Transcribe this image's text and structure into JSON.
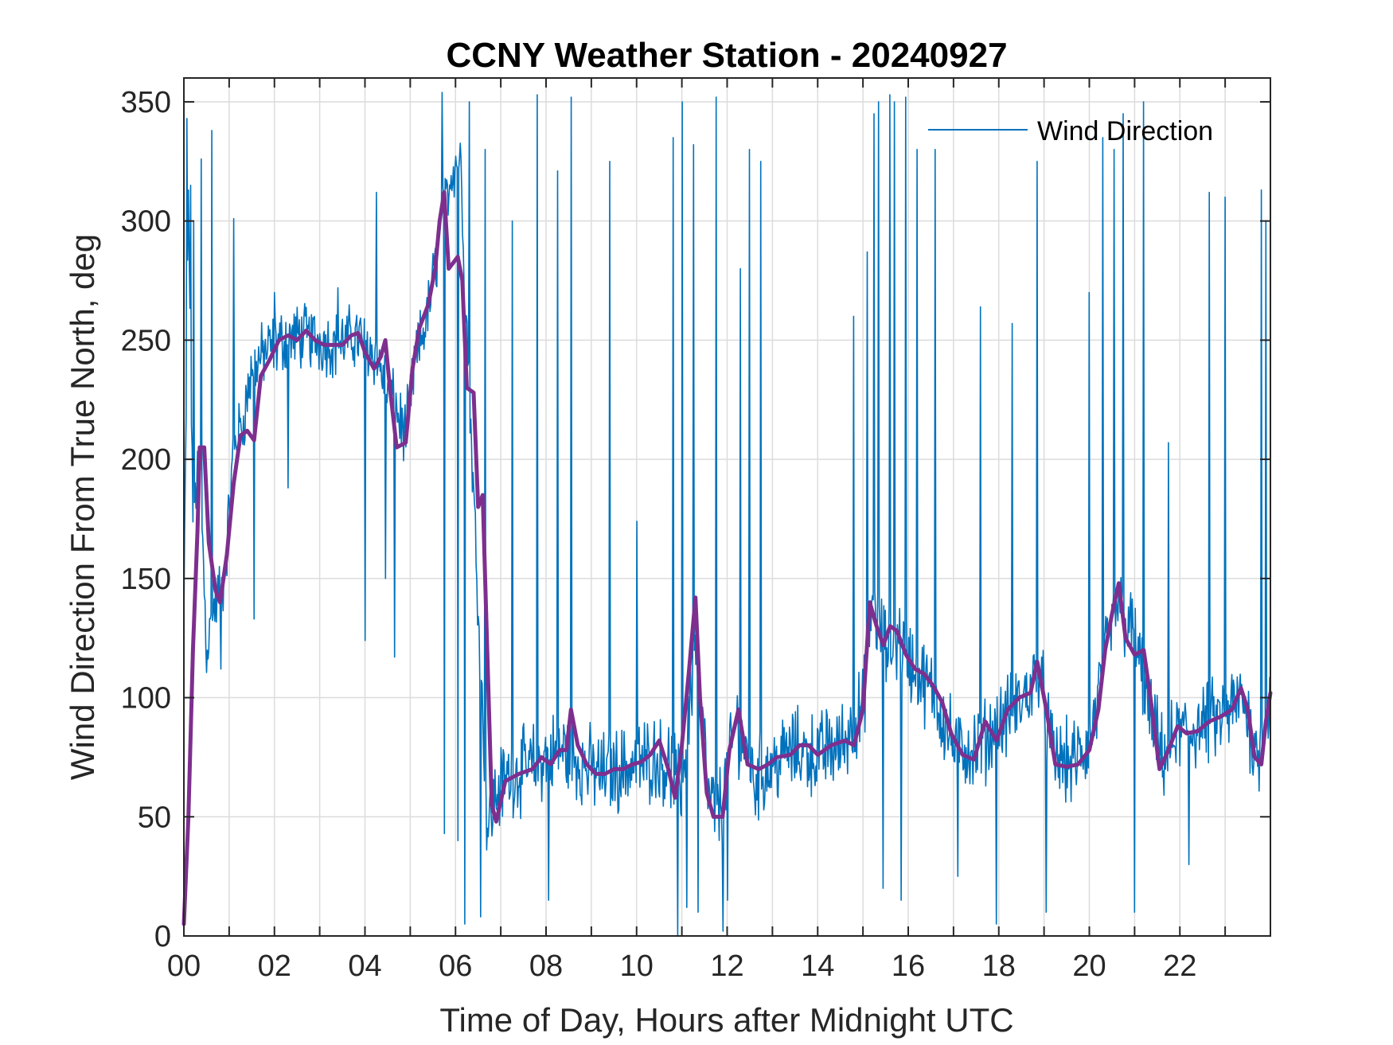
{
  "chart_data": {
    "type": "line",
    "title": "CCNY Weather Station - 20240927",
    "xlabel": "Time of Day, Hours after Midnight UTC",
    "ylabel": "Wind Direction From True North, deg",
    "xlim": [
      0,
      24
    ],
    "ylim": [
      0,
      360
    ],
    "x_ticks": [
      0,
      2,
      4,
      6,
      8,
      10,
      12,
      14,
      16,
      18,
      20,
      22
    ],
    "x_tick_labels": [
      "00",
      "02",
      "04",
      "06",
      "08",
      "10",
      "12",
      "14",
      "16",
      "18",
      "20",
      "22"
    ],
    "y_ticks": [
      0,
      50,
      100,
      150,
      200,
      250,
      300,
      350
    ],
    "y_tick_labels": [
      "0",
      "50",
      "100",
      "150",
      "200",
      "250",
      "300",
      "350"
    ],
    "grid": true,
    "legend": {
      "position": "top-right",
      "entries": [
        "Wind Direction"
      ]
    },
    "series": [
      {
        "name": "Wind Direction",
        "color": "#0072BD",
        "style": "thin",
        "anchors": [
          [
            0.0,
            130
          ],
          [
            0.1,
            310
          ],
          [
            0.2,
            180
          ],
          [
            0.35,
            200
          ],
          [
            0.5,
            120
          ],
          [
            0.7,
            140
          ],
          [
            0.9,
            150
          ],
          [
            1.1,
            205
          ],
          [
            1.3,
            215
          ],
          [
            1.5,
            238
          ],
          [
            1.8,
            245
          ],
          [
            2.2,
            250
          ],
          [
            2.6,
            252
          ],
          [
            3.0,
            250
          ],
          [
            3.4,
            248
          ],
          [
            3.8,
            252
          ],
          [
            4.2,
            245
          ],
          [
            4.6,
            225
          ],
          [
            4.9,
            210
          ],
          [
            5.1,
            240
          ],
          [
            5.4,
            262
          ],
          [
            5.7,
            300
          ],
          [
            5.9,
            320
          ],
          [
            6.1,
            330
          ],
          [
            6.3,
            230
          ],
          [
            6.5,
            140
          ],
          [
            6.7,
            45
          ],
          [
            6.9,
            60
          ],
          [
            7.2,
            68
          ],
          [
            7.6,
            70
          ],
          [
            8.0,
            75
          ],
          [
            8.4,
            78
          ],
          [
            8.8,
            72
          ],
          [
            9.2,
            68
          ],
          [
            9.6,
            70
          ],
          [
            10.0,
            72
          ],
          [
            10.4,
            75
          ],
          [
            10.8,
            70
          ],
          [
            11.0,
            60
          ],
          [
            11.3,
            125
          ],
          [
            11.6,
            55
          ],
          [
            11.9,
            55
          ],
          [
            12.2,
            90
          ],
          [
            12.6,
            65
          ],
          [
            13.0,
            72
          ],
          [
            13.5,
            78
          ],
          [
            14.0,
            76
          ],
          [
            14.5,
            80
          ],
          [
            15.0,
            95
          ],
          [
            15.2,
            140
          ],
          [
            15.5,
            120
          ],
          [
            15.8,
            125
          ],
          [
            16.2,
            110
          ],
          [
            16.6,
            100
          ],
          [
            17.0,
            80
          ],
          [
            17.5,
            78
          ],
          [
            18.0,
            88
          ],
          [
            18.5,
            98
          ],
          [
            18.9,
            110
          ],
          [
            19.2,
            75
          ],
          [
            19.6,
            72
          ],
          [
            20.0,
            80
          ],
          [
            20.3,
            110
          ],
          [
            20.6,
            140
          ],
          [
            21.0,
            125
          ],
          [
            21.3,
            95
          ],
          [
            21.6,
            75
          ],
          [
            22.0,
            85
          ],
          [
            22.5,
            88
          ],
          [
            23.0,
            92
          ],
          [
            23.4,
            100
          ],
          [
            23.7,
            75
          ],
          [
            24.0,
            100
          ]
        ],
        "spikes": [
          [
            0.07,
            343
          ],
          [
            0.15,
            315
          ],
          [
            0.22,
            300
          ],
          [
            0.38,
            326
          ],
          [
            0.62,
            338
          ],
          [
            0.82,
            112
          ],
          [
            1.1,
            301
          ],
          [
            1.55,
            133
          ],
          [
            2.0,
            270
          ],
          [
            2.3,
            188
          ],
          [
            3.4,
            272
          ],
          [
            4.0,
            124
          ],
          [
            4.25,
            312
          ],
          [
            4.45,
            150
          ],
          [
            4.65,
            117
          ],
          [
            5.7,
            354
          ],
          [
            5.75,
            43
          ],
          [
            6.05,
            40
          ],
          [
            6.2,
            5
          ],
          [
            6.3,
            350
          ],
          [
            6.55,
            8
          ],
          [
            6.65,
            330
          ],
          [
            7.25,
            300
          ],
          [
            7.8,
            353
          ],
          [
            8.05,
            15
          ],
          [
            8.25,
            321
          ],
          [
            8.55,
            352
          ],
          [
            9.4,
            325
          ],
          [
            10.0,
            174
          ],
          [
            10.8,
            335
          ],
          [
            10.9,
            0
          ],
          [
            11.0,
            350
          ],
          [
            11.1,
            12
          ],
          [
            11.25,
            332
          ],
          [
            11.35,
            10
          ],
          [
            11.75,
            352
          ],
          [
            11.9,
            2
          ],
          [
            12.0,
            15
          ],
          [
            12.3,
            280
          ],
          [
            12.5,
            330
          ],
          [
            12.75,
            325
          ],
          [
            13.3,
            80
          ],
          [
            14.2,
            95
          ],
          [
            14.8,
            260
          ],
          [
            15.1,
            287
          ],
          [
            15.25,
            345
          ],
          [
            15.35,
            350
          ],
          [
            15.45,
            20
          ],
          [
            15.6,
            353
          ],
          [
            15.7,
            350
          ],
          [
            15.85,
            15
          ],
          [
            15.95,
            352
          ],
          [
            16.2,
            330
          ],
          [
            16.6,
            330
          ],
          [
            17.1,
            25
          ],
          [
            17.6,
            264
          ],
          [
            17.95,
            5
          ],
          [
            18.3,
            257
          ],
          [
            18.85,
            325
          ],
          [
            19.05,
            10
          ],
          [
            20.0,
            270
          ],
          [
            20.3,
            335
          ],
          [
            20.55,
            330
          ],
          [
            20.75,
            345
          ],
          [
            21.0,
            10
          ],
          [
            21.2,
            350
          ],
          [
            21.75,
            207
          ],
          [
            22.2,
            30
          ],
          [
            22.65,
            312
          ],
          [
            23.0,
            310
          ],
          [
            23.8,
            313
          ],
          [
            23.9,
            300
          ]
        ]
      },
      {
        "name": "",
        "color": "#7E2F8E",
        "style": "thick",
        "points": [
          [
            0.0,
            5
          ],
          [
            0.1,
            50
          ],
          [
            0.2,
            120
          ],
          [
            0.3,
            170
          ],
          [
            0.35,
            205
          ],
          [
            0.45,
            205
          ],
          [
            0.55,
            165
          ],
          [
            0.7,
            145
          ],
          [
            0.8,
            140
          ],
          [
            0.95,
            160
          ],
          [
            1.1,
            190
          ],
          [
            1.25,
            210
          ],
          [
            1.4,
            212
          ],
          [
            1.55,
            208
          ],
          [
            1.7,
            235
          ],
          [
            1.9,
            242
          ],
          [
            2.1,
            250
          ],
          [
            2.3,
            252
          ],
          [
            2.5,
            250
          ],
          [
            2.7,
            254
          ],
          [
            2.9,
            250
          ],
          [
            3.1,
            248
          ],
          [
            3.3,
            248
          ],
          [
            3.5,
            248
          ],
          [
            3.7,
            252
          ],
          [
            3.85,
            253
          ],
          [
            4.0,
            245
          ],
          [
            4.2,
            238
          ],
          [
            4.35,
            243
          ],
          [
            4.45,
            250
          ],
          [
            4.55,
            230
          ],
          [
            4.7,
            205
          ],
          [
            4.9,
            207
          ],
          [
            5.05,
            238
          ],
          [
            5.2,
            255
          ],
          [
            5.4,
            265
          ],
          [
            5.55,
            280
          ],
          [
            5.65,
            300
          ],
          [
            5.75,
            312
          ],
          [
            5.85,
            280
          ],
          [
            6.05,
            285
          ],
          [
            6.15,
            275
          ],
          [
            6.25,
            230
          ],
          [
            6.4,
            228
          ],
          [
            6.5,
            180
          ],
          [
            6.6,
            185
          ],
          [
            6.7,
            120
          ],
          [
            6.8,
            55
          ],
          [
            6.9,
            48
          ],
          [
            7.1,
            65
          ],
          [
            7.4,
            68
          ],
          [
            7.7,
            70
          ],
          [
            7.9,
            75
          ],
          [
            8.1,
            72
          ],
          [
            8.3,
            78
          ],
          [
            8.45,
            78
          ],
          [
            8.55,
            95
          ],
          [
            8.7,
            80
          ],
          [
            8.9,
            72
          ],
          [
            9.1,
            68
          ],
          [
            9.3,
            68
          ],
          [
            9.5,
            70
          ],
          [
            9.7,
            70
          ],
          [
            9.9,
            72
          ],
          [
            10.1,
            73
          ],
          [
            10.3,
            76
          ],
          [
            10.5,
            82
          ],
          [
            10.7,
            70
          ],
          [
            10.85,
            58
          ],
          [
            11.0,
            80
          ],
          [
            11.15,
            110
          ],
          [
            11.3,
            142
          ],
          [
            11.4,
            100
          ],
          [
            11.55,
            60
          ],
          [
            11.7,
            50
          ],
          [
            11.9,
            50
          ],
          [
            12.05,
            78
          ],
          [
            12.25,
            95
          ],
          [
            12.45,
            72
          ],
          [
            12.7,
            70
          ],
          [
            12.9,
            72
          ],
          [
            13.1,
            75
          ],
          [
            13.4,
            76
          ],
          [
            13.6,
            80
          ],
          [
            13.8,
            80
          ],
          [
            14.0,
            76
          ],
          [
            14.3,
            80
          ],
          [
            14.6,
            82
          ],
          [
            14.8,
            80
          ],
          [
            15.0,
            95
          ],
          [
            15.15,
            140
          ],
          [
            15.3,
            130
          ],
          [
            15.45,
            122
          ],
          [
            15.6,
            130
          ],
          [
            15.75,
            128
          ],
          [
            15.95,
            118
          ],
          [
            16.15,
            112
          ],
          [
            16.35,
            110
          ],
          [
            16.55,
            105
          ],
          [
            16.75,
            98
          ],
          [
            16.95,
            85
          ],
          [
            17.2,
            76
          ],
          [
            17.45,
            74
          ],
          [
            17.7,
            90
          ],
          [
            17.95,
            82
          ],
          [
            18.2,
            95
          ],
          [
            18.45,
            100
          ],
          [
            18.7,
            102
          ],
          [
            18.85,
            115
          ],
          [
            19.05,
            95
          ],
          [
            19.25,
            72
          ],
          [
            19.5,
            71
          ],
          [
            19.75,
            72
          ],
          [
            20.0,
            78
          ],
          [
            20.2,
            95
          ],
          [
            20.35,
            120
          ],
          [
            20.5,
            135
          ],
          [
            20.65,
            148
          ],
          [
            20.8,
            125
          ],
          [
            21.0,
            118
          ],
          [
            21.2,
            120
          ],
          [
            21.35,
            100
          ],
          [
            21.55,
            70
          ],
          [
            21.75,
            78
          ],
          [
            21.95,
            88
          ],
          [
            22.15,
            85
          ],
          [
            22.4,
            86
          ],
          [
            22.65,
            90
          ],
          [
            22.9,
            92
          ],
          [
            23.15,
            95
          ],
          [
            23.35,
            104
          ],
          [
            23.5,
            95
          ],
          [
            23.65,
            75
          ],
          [
            23.8,
            72
          ],
          [
            23.9,
            90
          ],
          [
            24.0,
            102
          ]
        ]
      }
    ]
  }
}
